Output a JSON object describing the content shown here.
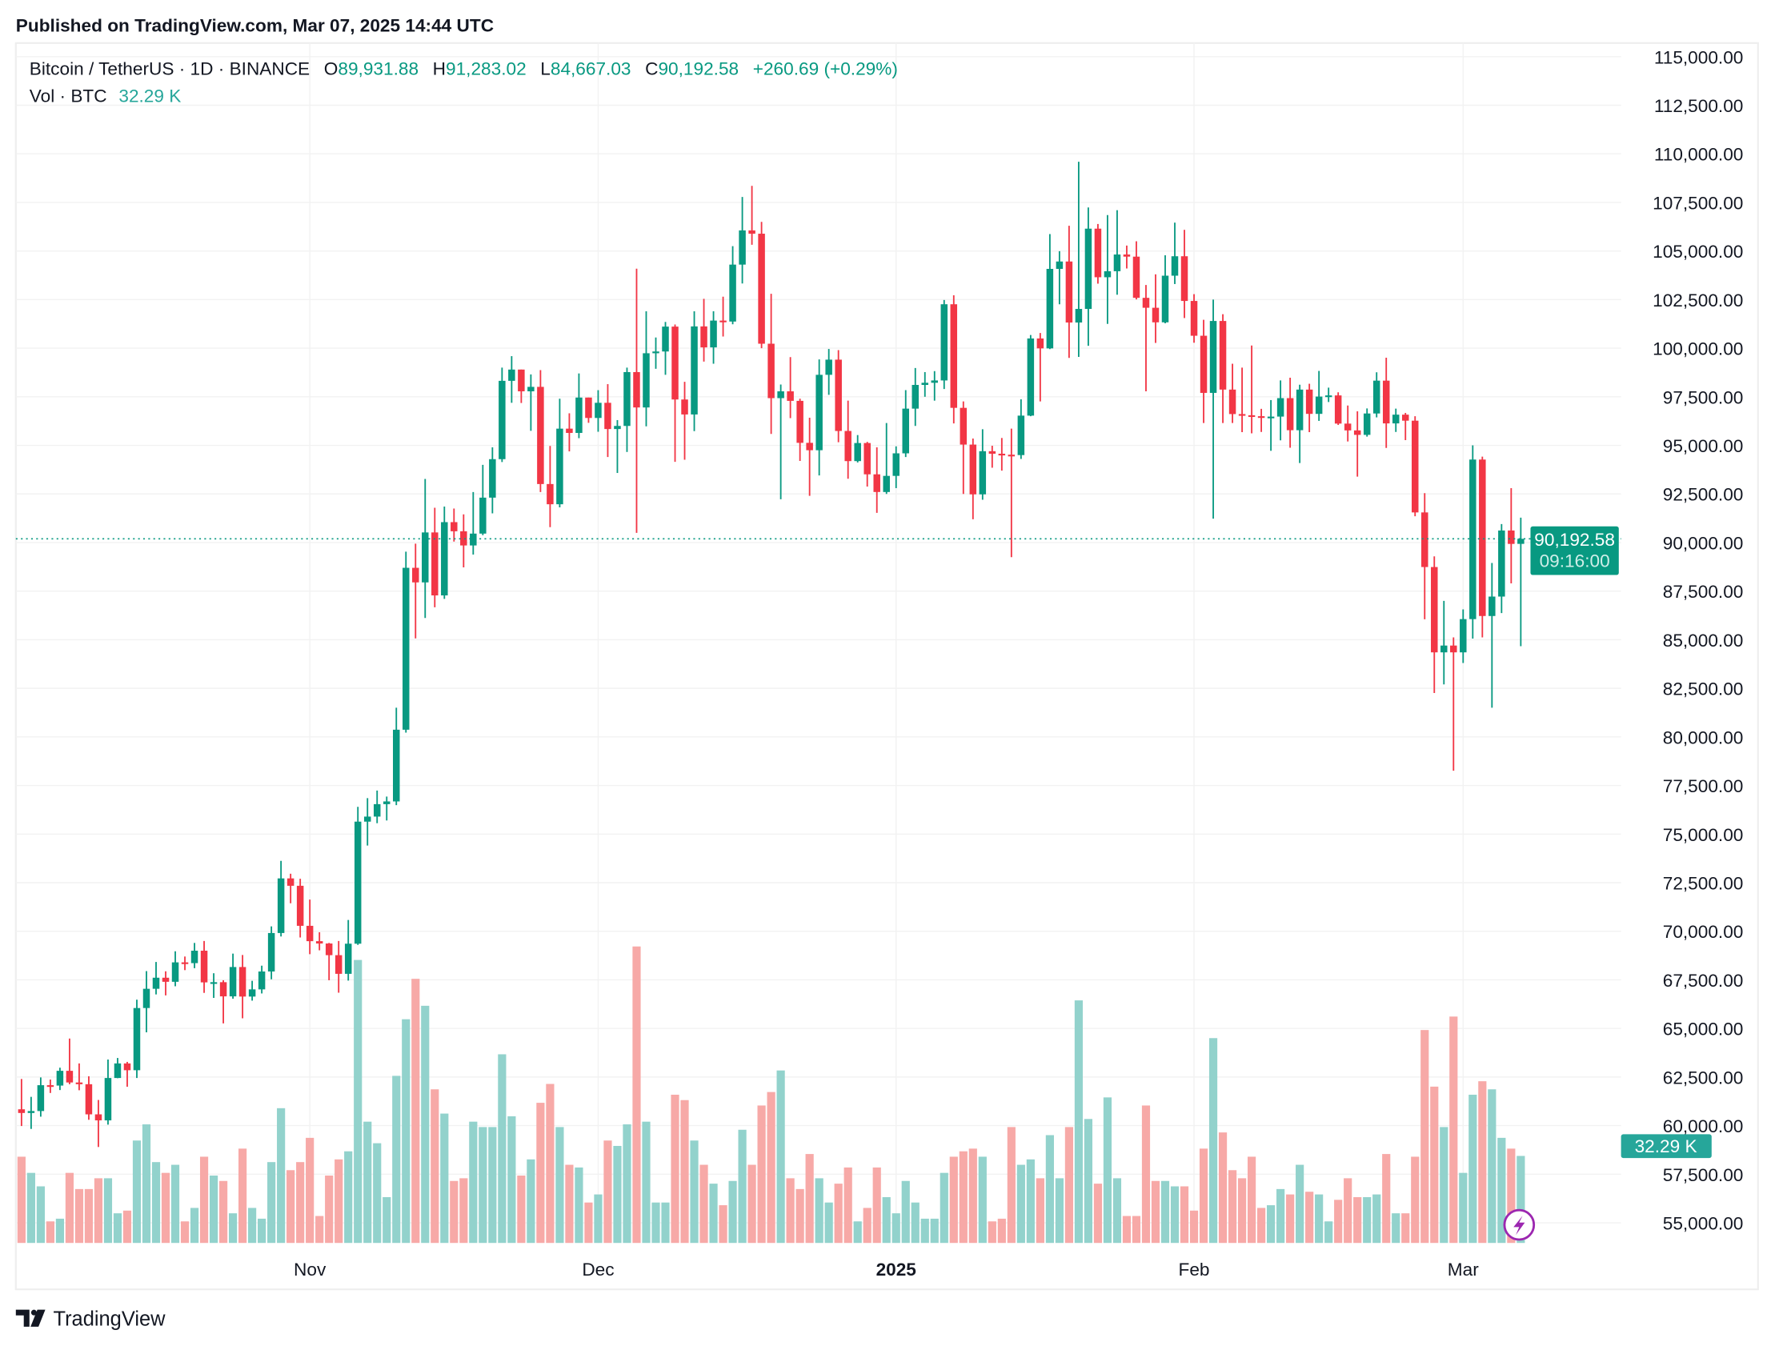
{
  "published": "Published on TradingView.com, Mar 07, 2025 14:44 UTC",
  "legend": {
    "symbol": "Bitcoin / TetherUS · 1D · BINANCE",
    "o_label": "O",
    "o_value": "89,931.88",
    "h_label": "H",
    "h_value": "91,283.02",
    "l_label": "L",
    "l_value": "84,667.03",
    "c_label": "C",
    "c_value": "90,192.58",
    "change": "+260.69 (+0.29%)",
    "vol_label": "Vol · BTC",
    "vol_value": "32.29 K"
  },
  "last_price": {
    "price": "90,192.58",
    "countdown": "09:16:00"
  },
  "last_volume": "32.29 K",
  "footer": {
    "logo": "TradingView"
  },
  "colors": {
    "up": "#089981",
    "down": "#f23645",
    "vol_up": "#92d2cc",
    "vol_down": "#f7a9a7",
    "grid": "#f2f2f2",
    "text": "#131722",
    "flash_icon": "#9c27b0"
  },
  "icons": {
    "flash": "lightning-bolt-icon",
    "logo": "tradingview-logo-icon"
  },
  "chart_data": {
    "type": "candlestick",
    "symbol": "BTCUSDT",
    "interval": "1D",
    "y_ticks": [
      "115,000.00",
      "112,500.00",
      "110,000.00",
      "107,500.00",
      "105,000.00",
      "102,500.00",
      "100,000.00",
      "97,500.00",
      "95,000.00",
      "92,500.00",
      "90,000.00",
      "87,500.00",
      "85,000.00",
      "82,500.00",
      "80,000.00",
      "77,500.00",
      "75,000.00",
      "72,500.00",
      "70,000.00",
      "67,500.00",
      "65,000.00",
      "62,500.00",
      "60,000.00",
      "57,500.00",
      "55,000.00"
    ],
    "ylim": [
      54000,
      116000
    ],
    "x_ticks": [
      {
        "label": "Nov",
        "date": "2024-11-01",
        "bold": false
      },
      {
        "label": "Dec",
        "date": "2024-12-01",
        "bold": false
      },
      {
        "label": "2025",
        "date": "2025-01-01",
        "bold": true
      },
      {
        "label": "Feb",
        "date": "2025-02-01",
        "bold": false
      },
      {
        "label": "Mar",
        "date": "2025-03-01",
        "bold": false
      }
    ],
    "grid": true,
    "columns": [
      "date",
      "open",
      "high",
      "low",
      "close",
      "volume_k_btc"
    ],
    "candles": [
      [
        "2024-10-02",
        60840,
        62400,
        59980,
        60650,
        32
      ],
      [
        "2024-10-03",
        60650,
        61480,
        59830,
        60750,
        26
      ],
      [
        "2024-10-04",
        60750,
        62480,
        60460,
        62080,
        21
      ],
      [
        "2024-10-05",
        62080,
        62370,
        61680,
        62060,
        8
      ],
      [
        "2024-10-06",
        62060,
        62980,
        61830,
        62820,
        9
      ],
      [
        "2024-10-07",
        62820,
        64480,
        62130,
        62220,
        26
      ],
      [
        "2024-10-08",
        62220,
        63200,
        61820,
        62130,
        20
      ],
      [
        "2024-10-09",
        62130,
        62540,
        60300,
        60580,
        20
      ],
      [
        "2024-10-10",
        60580,
        61320,
        58900,
        60270,
        24
      ],
      [
        "2024-10-11",
        60270,
        63400,
        60050,
        62450,
        24
      ],
      [
        "2024-10-12",
        62450,
        63480,
        62440,
        63200,
        11
      ],
      [
        "2024-10-13",
        63200,
        63280,
        62000,
        62850,
        12
      ],
      [
        "2024-10-14",
        62850,
        66480,
        62450,
        66050,
        38
      ],
      [
        "2024-10-15",
        66050,
        67950,
        64800,
        67040,
        44
      ],
      [
        "2024-10-16",
        67040,
        68420,
        66750,
        67610,
        30
      ],
      [
        "2024-10-17",
        67610,
        67940,
        66700,
        67400,
        26
      ],
      [
        "2024-10-18",
        67400,
        68970,
        67170,
        68400,
        29
      ],
      [
        "2024-10-19",
        68400,
        68700,
        68000,
        68360,
        8
      ],
      [
        "2024-10-20",
        68360,
        69400,
        68100,
        69000,
        13
      ],
      [
        "2024-10-21",
        69000,
        69500,
        66830,
        67370,
        32
      ],
      [
        "2024-10-22",
        67370,
        67840,
        66570,
        67380,
        25
      ],
      [
        "2024-10-23",
        67380,
        67480,
        65260,
        66650,
        23
      ],
      [
        "2024-10-24",
        66650,
        68850,
        66530,
        68160,
        11
      ],
      [
        "2024-10-25",
        68160,
        68780,
        65520,
        66640,
        35
      ],
      [
        "2024-10-26",
        66640,
        67450,
        66430,
        67010,
        13
      ],
      [
        "2024-10-27",
        67010,
        68230,
        66800,
        67930,
        9
      ],
      [
        "2024-10-28",
        67930,
        70250,
        67530,
        69910,
        30
      ],
      [
        "2024-10-29",
        69910,
        73620,
        69730,
        72720,
        50
      ],
      [
        "2024-10-30",
        72720,
        72960,
        71440,
        72340,
        27
      ],
      [
        "2024-10-31",
        72340,
        72700,
        69680,
        70280,
        30
      ],
      [
        "2024-11-01",
        70280,
        71630,
        68820,
        69490,
        39
      ],
      [
        "2024-11-02",
        69490,
        69950,
        69020,
        69370,
        10
      ],
      [
        "2024-11-03",
        69370,
        69400,
        67480,
        68770,
        25
      ],
      [
        "2024-11-04",
        68770,
        69500,
        66840,
        67810,
        31
      ],
      [
        "2024-11-05",
        67810,
        70580,
        67460,
        69360,
        34
      ],
      [
        "2024-11-06",
        69360,
        76400,
        69300,
        75640,
        105
      ],
      [
        "2024-11-07",
        75640,
        76850,
        74410,
        75900,
        45
      ],
      [
        "2024-11-08",
        75900,
        77240,
        75560,
        76540,
        37
      ],
      [
        "2024-11-09",
        76540,
        76930,
        75700,
        76680,
        17
      ],
      [
        "2024-11-10",
        76680,
        81500,
        76490,
        80370,
        62
      ],
      [
        "2024-11-11",
        80370,
        89530,
        80220,
        88700,
        83
      ],
      [
        "2024-11-12",
        88700,
        89940,
        85070,
        87950,
        98
      ],
      [
        "2024-11-13",
        87950,
        93270,
        86120,
        90520,
        88
      ],
      [
        "2024-11-14",
        90520,
        91790,
        86670,
        87280,
        57
      ],
      [
        "2024-11-15",
        87280,
        91850,
        87100,
        91050,
        48
      ],
      [
        "2024-11-16",
        91050,
        91750,
        90050,
        90580,
        23
      ],
      [
        "2024-11-17",
        90580,
        91450,
        88720,
        89850,
        24
      ],
      [
        "2024-11-18",
        89850,
        92600,
        89380,
        90460,
        45
      ],
      [
        "2024-11-19",
        90460,
        94000,
        90380,
        92310,
        43
      ],
      [
        "2024-11-20",
        92310,
        94900,
        91500,
        94290,
        43
      ],
      [
        "2024-11-21",
        94290,
        99000,
        94140,
        98320,
        70
      ],
      [
        "2024-11-22",
        98320,
        99590,
        97190,
        98900,
        47
      ],
      [
        "2024-11-23",
        98900,
        98900,
        97180,
        97780,
        25
      ],
      [
        "2024-11-24",
        97780,
        98650,
        95750,
        98010,
        31
      ],
      [
        "2024-11-25",
        98010,
        98870,
        92600,
        93010,
        52
      ],
      [
        "2024-11-26",
        93010,
        94970,
        90790,
        91970,
        59
      ],
      [
        "2024-11-27",
        91970,
        97400,
        91810,
        95860,
        43
      ],
      [
        "2024-11-28",
        95860,
        96650,
        94690,
        95640,
        29
      ],
      [
        "2024-11-29",
        95640,
        98700,
        95370,
        97460,
        28
      ],
      [
        "2024-11-30",
        97460,
        97460,
        96160,
        96410,
        15
      ],
      [
        "2024-12-01",
        96410,
        97840,
        95700,
        97190,
        18
      ],
      [
        "2024-12-02",
        97190,
        98150,
        94400,
        95840,
        38
      ],
      [
        "2024-12-03",
        95840,
        96300,
        93580,
        96000,
        36
      ],
      [
        "2024-12-04",
        96000,
        99000,
        94660,
        98770,
        44
      ],
      [
        "2024-12-05",
        98770,
        104090,
        90500,
        96950,
        110
      ],
      [
        "2024-12-06",
        96950,
        101900,
        95980,
        99740,
        45
      ],
      [
        "2024-12-07",
        99740,
        100550,
        98940,
        99830,
        15
      ],
      [
        "2024-12-08",
        99830,
        101350,
        98630,
        101110,
        15
      ],
      [
        "2024-12-09",
        101110,
        101220,
        94150,
        97360,
        55
      ],
      [
        "2024-12-10",
        97360,
        98270,
        94260,
        96590,
        53
      ],
      [
        "2024-12-11",
        96590,
        101900,
        95730,
        101120,
        38
      ],
      [
        "2024-12-12",
        101120,
        102540,
        99310,
        100040,
        29
      ],
      [
        "2024-12-13",
        100040,
        101900,
        99200,
        101420,
        22
      ],
      [
        "2024-12-14",
        101420,
        102650,
        100600,
        101370,
        14
      ],
      [
        "2024-12-15",
        101370,
        105250,
        101230,
        104300,
        23
      ],
      [
        "2024-12-16",
        104300,
        107780,
        103330,
        106060,
        42
      ],
      [
        "2024-12-17",
        106060,
        108350,
        105320,
        105890,
        29
      ],
      [
        "2024-12-18",
        105890,
        106500,
        100000,
        100230,
        51
      ],
      [
        "2024-12-19",
        100230,
        102800,
        95590,
        97430,
        56
      ],
      [
        "2024-12-20",
        97430,
        98130,
        92230,
        97780,
        64
      ],
      [
        "2024-12-21",
        97780,
        99540,
        96400,
        97290,
        24
      ],
      [
        "2024-12-22",
        97290,
        97400,
        94200,
        95130,
        20
      ],
      [
        "2024-12-23",
        95130,
        96420,
        92400,
        94750,
        33
      ],
      [
        "2024-12-24",
        94750,
        99420,
        93450,
        98630,
        24
      ],
      [
        "2024-12-25",
        98630,
        99960,
        97600,
        99410,
        15
      ],
      [
        "2024-12-26",
        99410,
        99900,
        95160,
        95740,
        22
      ],
      [
        "2024-12-27",
        95740,
        97300,
        93280,
        94190,
        28
      ],
      [
        "2024-12-28",
        94190,
        95530,
        94120,
        95120,
        8
      ],
      [
        "2024-12-29",
        95120,
        95180,
        92880,
        93510,
        13
      ],
      [
        "2024-12-30",
        93510,
        94900,
        91530,
        92600,
        28
      ],
      [
        "2024-12-31",
        92600,
        96150,
        92500,
        93430,
        17
      ],
      [
        "2025-01-01",
        93430,
        94950,
        92800,
        94590,
        11
      ],
      [
        "2025-01-02",
        94590,
        97840,
        94400,
        96890,
        23
      ],
      [
        "2025-01-03",
        96890,
        98980,
        96000,
        98110,
        15
      ],
      [
        "2025-01-04",
        98110,
        98770,
        97500,
        98220,
        9
      ],
      [
        "2025-01-05",
        98220,
        98820,
        97300,
        98340,
        9
      ],
      [
        "2025-01-06",
        98340,
        102480,
        97900,
        102260,
        26
      ],
      [
        "2025-01-07",
        102260,
        102720,
        96130,
        96930,
        32
      ],
      [
        "2025-01-08",
        96930,
        97260,
        92500,
        95040,
        34
      ],
      [
        "2025-01-09",
        95040,
        95350,
        91200,
        92480,
        35
      ],
      [
        "2025-01-10",
        92480,
        95830,
        92200,
        94700,
        32
      ],
      [
        "2025-01-11",
        94700,
        94980,
        93850,
        94570,
        8
      ],
      [
        "2025-01-12",
        94570,
        95380,
        93700,
        94520,
        9
      ],
      [
        "2025-01-13",
        94520,
        95860,
        89250,
        94500,
        43
      ],
      [
        "2025-01-14",
        94500,
        97370,
        94300,
        96530,
        29
      ],
      [
        "2025-01-15",
        96530,
        100680,
        96500,
        100500,
        31
      ],
      [
        "2025-01-16",
        100500,
        100780,
        97260,
        99990,
        24
      ],
      [
        "2025-01-17",
        99990,
        105870,
        99950,
        104080,
        40
      ],
      [
        "2025-01-18",
        104080,
        104990,
        102260,
        104460,
        24
      ],
      [
        "2025-01-19",
        104460,
        106300,
        99500,
        101320,
        43
      ],
      [
        "2025-01-20",
        101320,
        109590,
        99550,
        102020,
        90
      ],
      [
        "2025-01-21",
        102020,
        107240,
        100120,
        106150,
        46
      ],
      [
        "2025-01-22",
        106150,
        106390,
        103320,
        103650,
        22
      ],
      [
        "2025-01-23",
        103650,
        106850,
        101250,
        103960,
        54
      ],
      [
        "2025-01-24",
        103960,
        107100,
        102750,
        104820,
        24
      ],
      [
        "2025-01-25",
        104820,
        105280,
        104100,
        104710,
        10
      ],
      [
        "2025-01-26",
        104710,
        105500,
        102510,
        102590,
        10
      ],
      [
        "2025-01-27",
        102590,
        103250,
        97780,
        102080,
        51
      ],
      [
        "2025-01-28",
        102080,
        103800,
        100270,
        101330,
        23
      ],
      [
        "2025-01-29",
        101330,
        104780,
        101280,
        103730,
        23
      ],
      [
        "2025-01-30",
        103730,
        106460,
        103300,
        104730,
        21
      ],
      [
        "2025-01-31",
        104730,
        106090,
        101550,
        102430,
        21
      ],
      [
        "2025-02-01",
        102430,
        102780,
        100280,
        100640,
        12
      ],
      [
        "2025-02-02",
        100640,
        101460,
        96150,
        97700,
        35
      ],
      [
        "2025-02-03",
        97700,
        102500,
        91230,
        101400,
        76
      ],
      [
        "2025-02-04",
        101400,
        101750,
        96150,
        97870,
        41
      ],
      [
        "2025-02-05",
        97870,
        99200,
        96150,
        96610,
        27
      ],
      [
        "2025-02-06",
        96610,
        99000,
        95680,
        96550,
        24
      ],
      [
        "2025-02-07",
        96550,
        100140,
        95620,
        96500,
        32
      ],
      [
        "2025-02-08",
        96500,
        96880,
        95690,
        96470,
        13
      ],
      [
        "2025-02-09",
        96470,
        97330,
        94720,
        96480,
        14
      ],
      [
        "2025-02-10",
        96480,
        98340,
        95260,
        97430,
        20
      ],
      [
        "2025-02-11",
        97430,
        98480,
        94880,
        95780,
        18
      ],
      [
        "2025-02-12",
        95780,
        98120,
        94090,
        97870,
        29
      ],
      [
        "2025-02-13",
        97870,
        98170,
        95680,
        96620,
        19
      ],
      [
        "2025-02-14",
        96620,
        98830,
        96260,
        97510,
        18
      ],
      [
        "2025-02-15",
        97510,
        97970,
        97230,
        97570,
        8
      ],
      [
        "2025-02-16",
        97570,
        97730,
        96050,
        96120,
        16
      ],
      [
        "2025-02-17",
        96120,
        97050,
        95200,
        95770,
        24
      ],
      [
        "2025-02-18",
        95770,
        96750,
        93390,
        95540,
        17
      ],
      [
        "2025-02-19",
        95540,
        96900,
        95450,
        96640,
        17
      ],
      [
        "2025-02-20",
        96640,
        98760,
        96440,
        98330,
        18
      ],
      [
        "2025-02-21",
        98330,
        99510,
        94870,
        96130,
        33
      ],
      [
        "2025-02-22",
        96130,
        96890,
        95690,
        96580,
        11
      ],
      [
        "2025-02-23",
        96580,
        96670,
        95270,
        96270,
        11
      ],
      [
        "2025-02-24",
        96270,
        96500,
        91350,
        91550,
        32
      ],
      [
        "2025-02-25",
        91550,
        92540,
        86050,
        88740,
        79
      ],
      [
        "2025-02-26",
        88740,
        89290,
        82260,
        84350,
        58
      ],
      [
        "2025-02-27",
        84350,
        87000,
        82700,
        84700,
        43
      ],
      [
        "2025-02-28",
        84700,
        85120,
        78260,
        84350,
        84
      ],
      [
        "2025-03-01",
        84350,
        86560,
        83800,
        86060,
        26
      ],
      [
        "2025-03-02",
        86060,
        95000,
        85060,
        94270,
        55
      ],
      [
        "2025-03-03",
        94270,
        94420,
        85120,
        86220,
        60
      ],
      [
        "2025-03-04",
        86220,
        88950,
        81500,
        87220,
        57
      ],
      [
        "2025-03-05",
        87220,
        90950,
        86370,
        90620,
        39
      ],
      [
        "2025-03-06",
        90620,
        92800,
        87900,
        89930,
        35
      ],
      [
        "2025-03-07",
        89931.88,
        91283.02,
        84667.03,
        90192.58,
        32.29
      ]
    ]
  }
}
